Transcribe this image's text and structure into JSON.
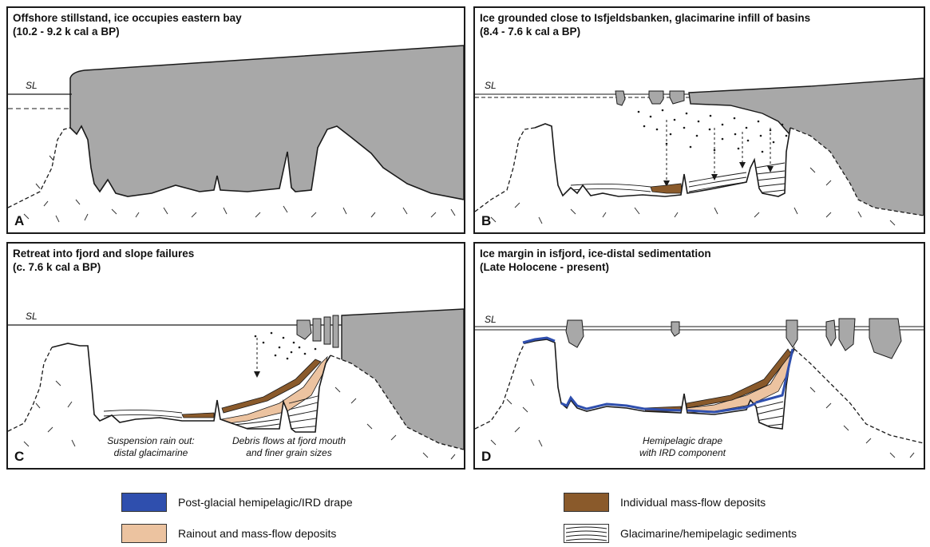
{
  "panels": {
    "a": {
      "title1": "Offshore stillstand, ice occupies eastern bay",
      "title2": "(10.2 - 9.2 k cal a BP)",
      "letter": "A",
      "sl": "SL"
    },
    "b": {
      "title1": "Ice grounded close to Isfjeldsbanken, glacimarine infill of basins",
      "title2": "(8.4 - 7.6 k cal a BP)",
      "letter": "B",
      "sl": "SL"
    },
    "c": {
      "title1": "Retreat into fjord and slope failures",
      "title2": "(c. 7.6 k cal a BP)",
      "letter": "C",
      "sl": "SL",
      "note1a": "Suspension rain out:",
      "note1b": "distal glacimarine",
      "note2a": "Debris flows at fjord mouth",
      "note2b": "and finer grain sizes"
    },
    "d": {
      "title1": "Ice margin in isfjord, ice-distal sedimentation",
      "title2": "(Late Holocene - present)",
      "letter": "D",
      "sl": "SL",
      "note1a": "Hemipelagic drape",
      "note1b": "with IRD component"
    }
  },
  "legend": [
    {
      "label": "Post-glacial hemipelagic/IRD drape",
      "color": "#2f4fae"
    },
    {
      "label": "Individual mass-flow deposits",
      "color": "#8a5a2b"
    },
    {
      "label": "Rainout and mass-flow deposits",
      "color": "#ecc3a0"
    },
    {
      "label": "Glacimarine/hemipelagic sediments",
      "color": "#ffffff"
    }
  ],
  "colors": {
    "ice": "#a8a8a8",
    "outline": "#1a1a1a"
  }
}
